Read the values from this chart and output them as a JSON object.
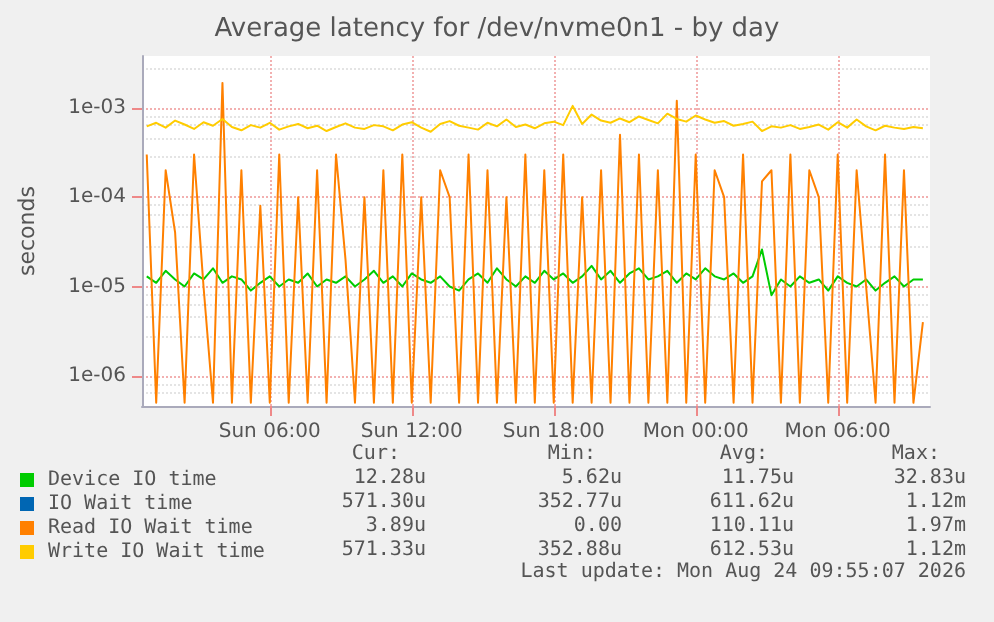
{
  "chart_data": {
    "type": "line",
    "title": "Average latency for /dev/nvme0n1 - by day",
    "ylabel": "seconds",
    "log": true,
    "grid": true,
    "legend": "bottom left",
    "marker": "none",
    "line_style": "solid",
    "xlim": [
      "2026-08-23T00:36",
      "2026-08-24T09:54"
    ],
    "xticks": [
      {
        "value": "2026-08-23T06:00",
        "label": "Sun 06:00"
      },
      {
        "value": "2026-08-23T12:00",
        "label": "Sun 12:00"
      },
      {
        "value": "2026-08-23T18:00",
        "label": "Sun 18:00"
      },
      {
        "value": "2026-08-24T00:00",
        "label": "Mon 00:00"
      },
      {
        "value": "2026-08-24T06:00",
        "label": "Mon 06:00"
      }
    ],
    "ylim": [
      4.6e-07,
      0.0038
    ],
    "yticks": [
      {
        "value": 1e-06,
        "label": "1e-06"
      },
      {
        "value": 1e-05,
        "label": "1e-05"
      },
      {
        "value": 0.0001,
        "label": "1e-04"
      },
      {
        "value": 0.001,
        "label": "1e-03"
      }
    ],
    "x": [
      "2026-08-23T00:48",
      "2026-08-23T01:12",
      "2026-08-23T01:36",
      "2026-08-23T02:00",
      "2026-08-23T02:24",
      "2026-08-23T02:48",
      "2026-08-23T03:12",
      "2026-08-23T03:36",
      "2026-08-23T04:00",
      "2026-08-23T04:24",
      "2026-08-23T04:48",
      "2026-08-23T05:12",
      "2026-08-23T05:36",
      "2026-08-23T06:00",
      "2026-08-23T06:24",
      "2026-08-23T06:48",
      "2026-08-23T07:12",
      "2026-08-23T07:36",
      "2026-08-23T08:00",
      "2026-08-23T08:24",
      "2026-08-23T08:48",
      "2026-08-23T09:12",
      "2026-08-23T09:36",
      "2026-08-23T10:00",
      "2026-08-23T10:24",
      "2026-08-23T10:48",
      "2026-08-23T11:12",
      "2026-08-23T11:36",
      "2026-08-23T12:00",
      "2026-08-23T12:24",
      "2026-08-23T12:48",
      "2026-08-23T13:12",
      "2026-08-23T13:36",
      "2026-08-23T14:00",
      "2026-08-23T14:24",
      "2026-08-23T14:48",
      "2026-08-23T15:12",
      "2026-08-23T15:36",
      "2026-08-23T16:00",
      "2026-08-23T16:24",
      "2026-08-23T16:48",
      "2026-08-23T17:12",
      "2026-08-23T17:36",
      "2026-08-23T18:00",
      "2026-08-23T18:24",
      "2026-08-23T18:48",
      "2026-08-23T19:12",
      "2026-08-23T19:36",
      "2026-08-23T20:00",
      "2026-08-23T20:24",
      "2026-08-23T20:48",
      "2026-08-23T21:12",
      "2026-08-23T21:36",
      "2026-08-23T22:00",
      "2026-08-23T22:24",
      "2026-08-23T22:48",
      "2026-08-23T23:12",
      "2026-08-23T23:36",
      "2026-08-24T00:00",
      "2026-08-24T00:24",
      "2026-08-24T00:48",
      "2026-08-24T01:12",
      "2026-08-24T01:36",
      "2026-08-24T02:00",
      "2026-08-24T02:24",
      "2026-08-24T02:48",
      "2026-08-24T03:12",
      "2026-08-24T03:36",
      "2026-08-24T04:00",
      "2026-08-24T04:24",
      "2026-08-24T04:48",
      "2026-08-24T05:12",
      "2026-08-24T05:36",
      "2026-08-24T06:00",
      "2026-08-24T06:24",
      "2026-08-24T06:48",
      "2026-08-24T07:12",
      "2026-08-24T07:36",
      "2026-08-24T08:00",
      "2026-08-24T08:24",
      "2026-08-24T08:48",
      "2026-08-24T09:12",
      "2026-08-24T09:36"
    ],
    "series": [
      {
        "name": "Device IO time",
        "color": "#00cc00",
        "values": [
          1.3e-05,
          1.1e-05,
          1.5e-05,
          1.2e-05,
          1e-05,
          1.4e-05,
          1.2e-05,
          1.6e-05,
          1.1e-05,
          1.3e-05,
          1.2e-05,
          9e-06,
          1.1e-05,
          1.3e-05,
          1e-05,
          1.2e-05,
          1.1e-05,
          1.4e-05,
          1e-05,
          1.2e-05,
          1.1e-05,
          1.3e-05,
          1e-05,
          1.2e-05,
          1.5e-05,
          1.1e-05,
          1.3e-05,
          1e-05,
          1.4e-05,
          1.2e-05,
          1.1e-05,
          1.3e-05,
          1e-05,
          9e-06,
          1.2e-05,
          1.4e-05,
          1.1e-05,
          1.6e-05,
          1.2e-05,
          1e-05,
          1.3e-05,
          1.1e-05,
          1.5e-05,
          1.2e-05,
          1.4e-05,
          1.1e-05,
          1.3e-05,
          1.7e-05,
          1.2e-05,
          1.5e-05,
          1.1e-05,
          1.4e-05,
          1.6e-05,
          1.2e-05,
          1.3e-05,
          1.5e-05,
          1.1e-05,
          1.4e-05,
          1.2e-05,
          1.6e-05,
          1.3e-05,
          1.2e-05,
          1.4e-05,
          1.1e-05,
          1.3e-05,
          2.6e-05,
          8e-06,
          1.2e-05,
          1e-05,
          1.3e-05,
          1.1e-05,
          1.2e-05,
          9e-06,
          1.3e-05,
          1.1e-05,
          1e-05,
          1.2e-05,
          9e-06,
          1.1e-05,
          1.3e-05,
          1e-05,
          1.2e-05,
          1.2e-05
        ]
      },
      {
        "name": "IO Wait time",
        "color": "#0066b3",
        "values": [
          null,
          null,
          null,
          null,
          null,
          null,
          null,
          null,
          null,
          null,
          null,
          null,
          null,
          null,
          null,
          null,
          null,
          null,
          null,
          null,
          null,
          null,
          null,
          null,
          null,
          null,
          null,
          null,
          null,
          null,
          null,
          null,
          null,
          null,
          null,
          null,
          null,
          null,
          null,
          null,
          null,
          null,
          null,
          null,
          null,
          null,
          null,
          null,
          null,
          null,
          null,
          null,
          null,
          null,
          null,
          null,
          null,
          null,
          null,
          null,
          null,
          null,
          null,
          null,
          null,
          null,
          null,
          null,
          null,
          null,
          null,
          null,
          null,
          null,
          null,
          null,
          null,
          null,
          null,
          null,
          null,
          null,
          null
        ]
      },
      {
        "name": "Read IO Wait time",
        "color": "#ff8000",
        "values": [
          0.0003,
          5e-07,
          0.0002,
          4e-05,
          5e-07,
          0.0003,
          1e-05,
          5e-07,
          0.0019,
          5e-07,
          0.0002,
          5e-07,
          8e-05,
          5e-07,
          0.0003,
          5e-07,
          0.0001,
          5e-07,
          0.0002,
          5e-07,
          0.0003,
          2e-05,
          5e-07,
          0.0001,
          5e-07,
          0.0002,
          5e-07,
          0.0003,
          5e-07,
          0.0001,
          5e-07,
          0.0002,
          0.0001,
          5e-07,
          0.0003,
          5e-07,
          0.0002,
          5e-07,
          0.0001,
          5e-07,
          0.0003,
          5e-07,
          0.0002,
          5e-07,
          0.0003,
          5e-07,
          0.0001,
          5e-07,
          0.0002,
          5e-07,
          0.0005,
          5e-07,
          0.0003,
          5e-07,
          0.0002,
          5e-07,
          0.0012,
          5e-07,
          0.0003,
          5e-07,
          0.0002,
          0.0001,
          5e-07,
          0.0003,
          5e-07,
          0.00015,
          0.0002,
          5e-07,
          0.0003,
          5e-07,
          0.0002,
          0.0001,
          5e-07,
          0.0003,
          5e-07,
          0.0002,
          1e-05,
          5e-07,
          0.0003,
          5e-07,
          0.0002,
          5e-07,
          4e-06
        ]
      },
      {
        "name": "Write IO Wait time",
        "color": "#ffcc00",
        "values": [
          0.00062,
          0.00068,
          0.0006,
          0.00072,
          0.00065,
          0.00058,
          0.00069,
          0.00063,
          0.00075,
          0.00061,
          0.00056,
          0.00064,
          0.0006,
          0.00068,
          0.00057,
          0.00062,
          0.00066,
          0.00059,
          0.00063,
          0.00055,
          0.00061,
          0.00067,
          0.0006,
          0.00058,
          0.00064,
          0.00062,
          0.00056,
          0.00065,
          0.00069,
          0.0006,
          0.00054,
          0.00066,
          0.00071,
          0.00063,
          0.0006,
          0.00057,
          0.00068,
          0.00062,
          0.00074,
          0.00061,
          0.00065,
          0.00059,
          0.00067,
          0.0007,
          0.00064,
          0.00105,
          0.00066,
          0.00084,
          0.00072,
          0.00068,
          0.00076,
          0.00069,
          0.0008,
          0.00073,
          0.00067,
          0.00086,
          0.00075,
          0.0007,
          0.00082,
          0.00074,
          0.00068,
          0.00071,
          0.00063,
          0.00066,
          0.0007,
          0.00055,
          0.00062,
          0.0006,
          0.00064,
          0.00058,
          0.00061,
          0.00065,
          0.00057,
          0.00069,
          0.0006,
          0.00074,
          0.00062,
          0.00056,
          0.00063,
          0.0006,
          0.00058,
          0.00061,
          0.00059
        ]
      }
    ],
    "annotations": [
      "Cur:",
      "Min:",
      "Avg:",
      "Max:",
      "12.28u",
      "5.62u",
      "11.75u",
      "32.83u",
      "571.30u",
      "352.77u",
      "611.62u",
      "1.12m",
      "3.89u",
      "0.00",
      "110.11u",
      "1.97m",
      "571.33u",
      "352.88u",
      "612.53u",
      "1.12m",
      "Last update: Mon Aug 24 09:55:07 2026"
    ]
  }
}
